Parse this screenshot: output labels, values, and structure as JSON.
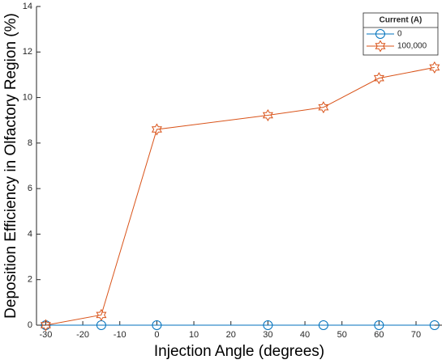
{
  "chart_data": {
    "type": "line",
    "x_label": "Injection Angle (degrees)",
    "y_label": "Deposition Efficiency in Olfactory Region (%)",
    "x": [
      -30,
      -15,
      0,
      30,
      45,
      60,
      75
    ],
    "series": [
      {
        "name": "0",
        "color": "#0072BD",
        "marker": "circle",
        "values": [
          0,
          0,
          0,
          0,
          0,
          0,
          0
        ]
      },
      {
        "name": "100,000",
        "color": "#D95319",
        "marker": "hexagram",
        "values": [
          0,
          0.45,
          8.6,
          9.22,
          9.57,
          10.85,
          11.32
        ]
      }
    ],
    "legend_title": "Current (A)",
    "legend": "top-right",
    "xlim": [
      -32.5,
      77
    ],
    "xticks": [
      -30,
      -20,
      -10,
      0,
      10,
      20,
      30,
      40,
      50,
      60,
      70
    ],
    "ylim": [
      0,
      14
    ],
    "yticks": [
      0,
      2,
      4,
      6,
      8,
      10,
      12,
      14
    ],
    "grid": false
  }
}
